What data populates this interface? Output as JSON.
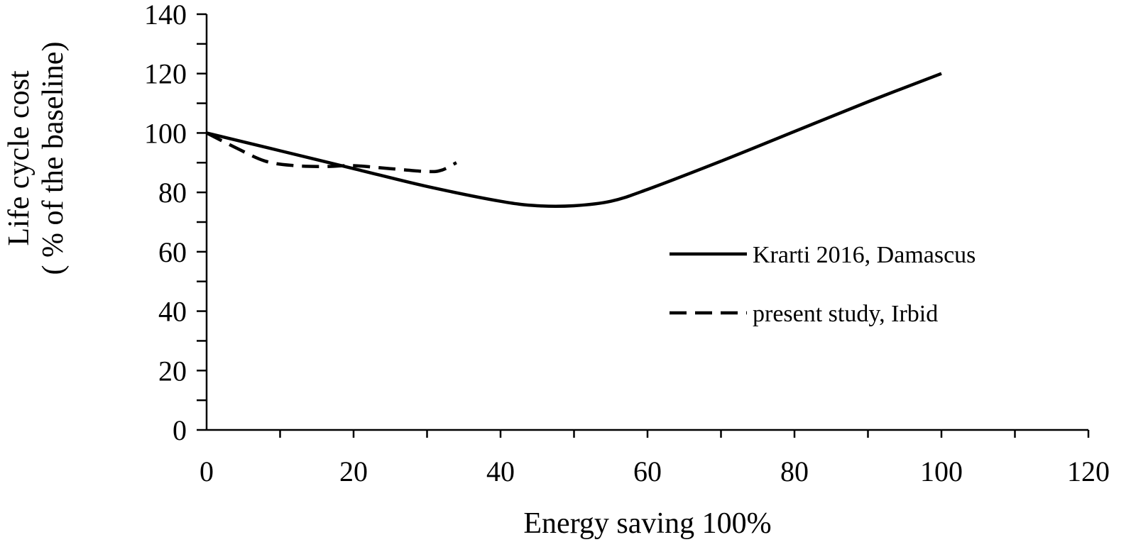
{
  "chart_data": {
    "type": "line",
    "xlabel": "Energy saving 100%",
    "ylabel_lines": [
      "Life cycle cost",
      "( % of the baseline)"
    ],
    "xlim": [
      0,
      120
    ],
    "ylim": [
      0,
      140
    ],
    "x_major_ticks": [
      0,
      20,
      40,
      60,
      80,
      100,
      120
    ],
    "x_minor_ticks": [
      10,
      30,
      50,
      70,
      90,
      110
    ],
    "y_major_ticks": [
      0,
      20,
      40,
      60,
      80,
      100,
      120,
      140
    ],
    "y_minor_ticks": [
      10,
      30,
      50,
      70,
      90,
      110,
      130
    ],
    "x_tick_labels": [
      "0",
      "20",
      "40",
      "60",
      "80",
      "100",
      "120"
    ],
    "y_tick_labels": [
      "0",
      "20",
      "40",
      "60",
      "80",
      "100",
      "120",
      "140"
    ],
    "grid": false,
    "legend_position": "right",
    "series": [
      {
        "name": "Krarti 2016, Damascus",
        "style": "solid",
        "color": "#000000",
        "x": [
          0,
          10,
          20,
          30,
          40,
          45,
          50,
          55,
          60,
          70,
          80,
          90,
          100
        ],
        "y": [
          100,
          94,
          88,
          82,
          77,
          75.5,
          75.5,
          77,
          81,
          90.5,
          100.5,
          110.5,
          120
        ]
      },
      {
        "name": "present study, Irbid",
        "style": "dashed",
        "color": "#000000",
        "x": [
          0,
          4,
          8,
          12,
          16,
          20,
          25,
          30,
          32,
          34
        ],
        "y": [
          100,
          95,
          90.5,
          89,
          88.7,
          89,
          88,
          87,
          87.5,
          90
        ]
      }
    ]
  }
}
